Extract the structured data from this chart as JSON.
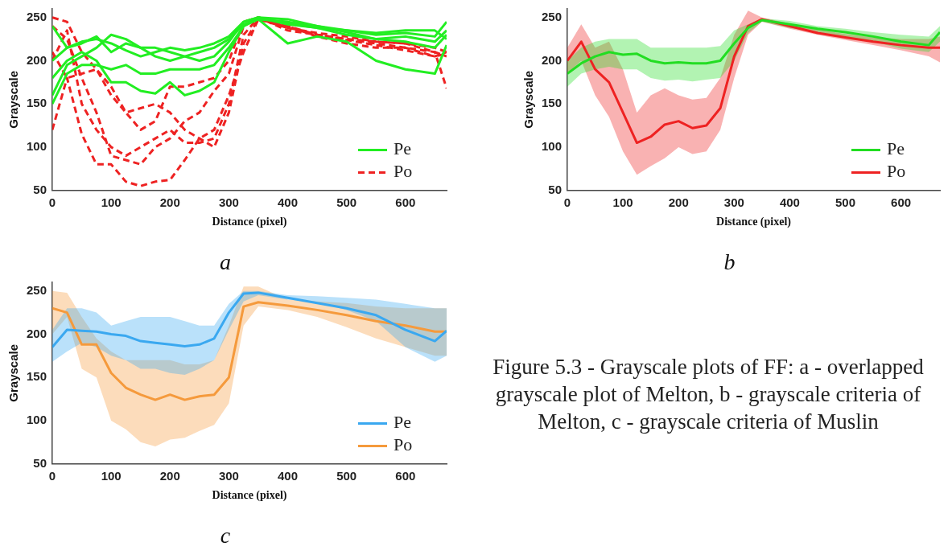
{
  "chart_data": [
    {
      "type": "line",
      "title": "a",
      "xlabel": "Distance (pixel)",
      "ylabel": "Grayscale",
      "x": [
        0,
        25,
        50,
        75,
        100,
        125,
        150,
        175,
        200,
        225,
        250,
        275,
        300,
        325,
        350,
        400,
        450,
        500,
        550,
        600,
        650,
        670
      ],
      "xlim": [
        0,
        670
      ],
      "xticks": [
        0,
        100,
        200,
        300,
        400,
        500,
        600
      ],
      "ylim": [
        50,
        260
      ],
      "yticks": [
        50,
        100,
        150,
        200,
        250
      ],
      "legend": "bottom right",
      "grid": false,
      "series": [
        {
          "name": "Pe",
          "color": "#22ee22",
          "line_style": "solid",
          "values": [
            240,
            215,
            222,
            225,
            220,
            212,
            205,
            210,
            215,
            212,
            215,
            220,
            228,
            245,
            250,
            248,
            240,
            235,
            230,
            232,
            228,
            245
          ]
        },
        {
          "color": "#22ee22",
          "line_style": "solid",
          "values": [
            160,
            195,
            205,
            215,
            230,
            225,
            215,
            205,
            200,
            205,
            210,
            215,
            225,
            242,
            248,
            245,
            240,
            233,
            225,
            228,
            222,
            235
          ]
        },
        {
          "color": "#22ee22",
          "line_style": "solid",
          "values": [
            180,
            200,
            210,
            200,
            175,
            175,
            165,
            162,
            175,
            160,
            165,
            175,
            210,
            240,
            248,
            220,
            228,
            222,
            200,
            190,
            185,
            218
          ]
        },
        {
          "color": "#22ee22",
          "line_style": "solid",
          "values": [
            200,
            215,
            220,
            228,
            210,
            220,
            215,
            215,
            210,
            205,
            200,
            205,
            222,
            245,
            250,
            243,
            238,
            235,
            232,
            235,
            235,
            225
          ]
        },
        {
          "color": "#22ee22",
          "line_style": "solid",
          "values": [
            150,
            185,
            195,
            195,
            190,
            195,
            185,
            185,
            190,
            190,
            190,
            195,
            215,
            240,
            250,
            242,
            238,
            230,
            225,
            222,
            215,
            230
          ]
        },
        {
          "name": "Po",
          "color": "#ee2222",
          "line_style": "dashed",
          "values": [
            250,
            245,
            210,
            190,
            170,
            140,
            120,
            130,
            170,
            170,
            175,
            180,
            200,
            245,
            250,
            235,
            230,
            225,
            222,
            220,
            215,
            210
          ]
        },
        {
          "color": "#ee2222",
          "line_style": "dashed",
          "values": [
            120,
            180,
            115,
            80,
            80,
            60,
            55,
            60,
            62,
            85,
            110,
            120,
            160,
            210,
            248,
            240,
            228,
            220,
            215,
            215,
            205,
            210
          ]
        },
        {
          "color": "#ee2222",
          "line_style": "dashed",
          "values": [
            200,
            235,
            150,
            120,
            100,
            90,
            100,
            110,
            120,
            105,
            105,
            110,
            150,
            230,
            250,
            238,
            230,
            225,
            220,
            215,
            210,
            168
          ]
        },
        {
          "color": "#ee2222",
          "line_style": "dashed",
          "values": [
            210,
            180,
            185,
            190,
            160,
            140,
            145,
            150,
            140,
            120,
            110,
            100,
            140,
            220,
            248,
            238,
            232,
            228,
            222,
            220,
            210,
            205
          ]
        },
        {
          "color": "#ee2222",
          "line_style": "dashed",
          "values": [
            240,
            225,
            180,
            140,
            90,
            85,
            80,
            100,
            110,
            130,
            140,
            165,
            185,
            240,
            250,
            240,
            230,
            224,
            218,
            212,
            205,
            208
          ]
        }
      ]
    },
    {
      "type": "line",
      "title": "b",
      "xlabel": "Distance (pixel)",
      "ylabel": "Grayscale",
      "x": [
        0,
        25,
        50,
        75,
        100,
        125,
        150,
        175,
        200,
        225,
        250,
        275,
        300,
        325,
        350,
        400,
        450,
        500,
        550,
        600,
        650,
        670
      ],
      "xlim": [
        0,
        670
      ],
      "xticks": [
        0,
        100,
        200,
        300,
        400,
        500,
        600
      ],
      "ylim": [
        50,
        260
      ],
      "yticks": [
        50,
        100,
        150,
        200,
        250
      ],
      "legend": "bottom right",
      "grid": false,
      "series": [
        {
          "name": "Pe",
          "color": "#22dd22",
          "values": [
            185,
            197,
            205,
            210,
            207,
            208,
            200,
            197,
            198,
            197,
            197,
            200,
            220,
            238,
            247,
            242,
            237,
            233,
            228,
            222,
            218,
            233
          ],
          "lower": [
            170,
            185,
            190,
            193,
            190,
            190,
            180,
            177,
            178,
            176,
            178,
            180,
            200,
            232,
            245,
            238,
            233,
            228,
            222,
            214,
            210,
            222
          ],
          "upper": [
            200,
            215,
            222,
            225,
            225,
            225,
            215,
            215,
            215,
            215,
            215,
            217,
            235,
            242,
            249,
            246,
            240,
            237,
            233,
            230,
            228,
            240
          ]
        },
        {
          "name": "Po",
          "color": "#ee2222",
          "values": [
            200,
            222,
            190,
            175,
            140,
            105,
            112,
            126,
            130,
            122,
            125,
            145,
            205,
            240,
            248,
            240,
            232,
            227,
            222,
            218,
            215,
            215
          ],
          "lower": [
            185,
            200,
            160,
            135,
            95,
            68,
            78,
            87,
            100,
            92,
            95,
            120,
            180,
            230,
            245,
            237,
            230,
            224,
            218,
            212,
            205,
            198
          ],
          "upper": [
            215,
            242,
            215,
            222,
            190,
            140,
            160,
            168,
            160,
            155,
            157,
            180,
            230,
            258,
            250,
            243,
            236,
            231,
            227,
            225,
            225,
            228
          ]
        }
      ]
    },
    {
      "type": "line",
      "title": "c",
      "xlabel": "Distance (pixel)",
      "ylabel": "Grayscale",
      "x": [
        0,
        25,
        50,
        75,
        100,
        125,
        150,
        175,
        200,
        225,
        250,
        275,
        300,
        325,
        350,
        400,
        450,
        500,
        550,
        600,
        650,
        670
      ],
      "xlim": [
        0,
        670
      ],
      "xticks": [
        0,
        100,
        200,
        300,
        400,
        500,
        600
      ],
      "ylim": [
        50,
        260
      ],
      "yticks": [
        50,
        100,
        150,
        200,
        250
      ],
      "legend": "bottom right",
      "grid": false,
      "series": [
        {
          "name": "Pe",
          "color": "#3aa8f0",
          "values": [
            185,
            205,
            204,
            203,
            200,
            198,
            192,
            190,
            188,
            186,
            188,
            195,
            225,
            247,
            248,
            242,
            236,
            230,
            222,
            205,
            192,
            204
          ],
          "lower": [
            168,
            180,
            190,
            185,
            175,
            170,
            160,
            160,
            155,
            153,
            160,
            170,
            205,
            238,
            245,
            240,
            237,
            228,
            215,
            185,
            168,
            175
          ],
          "upper": [
            205,
            230,
            230,
            225,
            210,
            215,
            220,
            220,
            220,
            215,
            210,
            210,
            235,
            250,
            250,
            245,
            244,
            242,
            240,
            235,
            230,
            230
          ]
        },
        {
          "name": "Po",
          "color": "#f59a3c",
          "values": [
            230,
            225,
            188,
            188,
            155,
            138,
            130,
            124,
            130,
            124,
            128,
            130,
            150,
            232,
            237,
            233,
            228,
            222,
            215,
            210,
            203,
            203
          ],
          "lower": [
            200,
            220,
            160,
            150,
            100,
            90,
            75,
            70,
            78,
            80,
            88,
            95,
            120,
            210,
            232,
            228,
            220,
            208,
            195,
            185,
            175,
            175
          ],
          "upper": [
            250,
            248,
            220,
            195,
            180,
            170,
            170,
            170,
            170,
            165,
            165,
            170,
            210,
            255,
            255,
            240,
            238,
            236,
            232,
            230,
            230,
            230
          ]
        }
      ]
    },
    {
      "type": "other",
      "title": "Figure 5.3 - Grayscale plots of FF: a - overlapped grayscale plot of Melton, b - grayscale criteria of Melton, c - grayscale criteria of Muslin"
    }
  ]
}
